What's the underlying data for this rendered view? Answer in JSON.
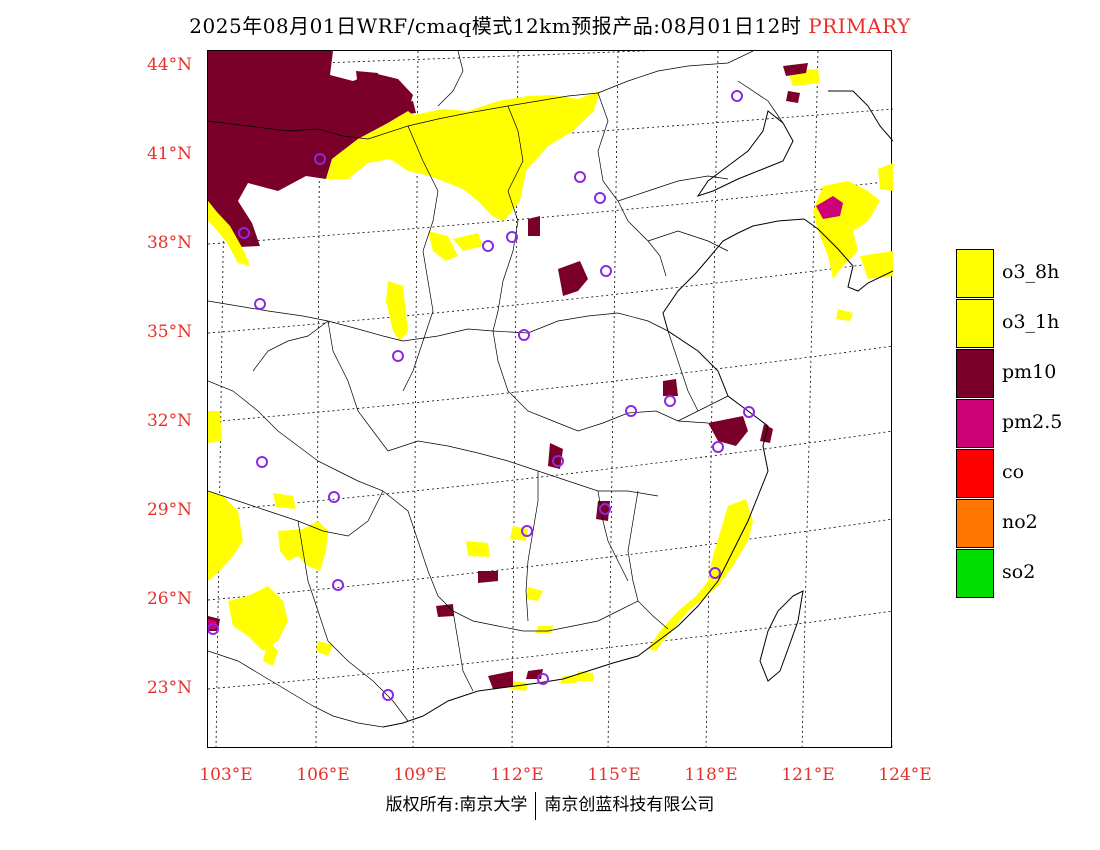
{
  "title": {
    "main": "2025年08月01日WRF/cmaq模式12km预报产品:08月01日12时",
    "tag": "PRIMARY"
  },
  "colors": {
    "o3_8h": "#ffff00",
    "o3_1h": "#ffff00",
    "pm10": "#7a0029",
    "pm25": "#cc0077",
    "co": "#ff0000",
    "no2": "#ff7700",
    "so2": "#00dd00",
    "station": "#8a2be2",
    "axis_label": "#e8302a"
  },
  "lat_labels": [
    "44°N",
    "41°N",
    "38°N",
    "35°N",
    "32°N",
    "29°N",
    "26°N",
    "23°N"
  ],
  "lon_labels": [
    "103°E",
    "106°E",
    "109°E",
    "112°E",
    "115°E",
    "118°E",
    "121°E",
    "124°E"
  ],
  "legend": [
    {
      "label": "o3_8h",
      "color": "#ffff00"
    },
    {
      "label": "o3_1h",
      "color": "#ffff00"
    },
    {
      "label": "pm10",
      "color": "#7a0029"
    },
    {
      "label": "pm2.5",
      "color": "#cc0077"
    },
    {
      "label": "co",
      "color": "#ff0000"
    },
    {
      "label": "no2",
      "color": "#ff7700"
    },
    {
      "label": "so2",
      "color": "#00dd00"
    }
  ],
  "copyright": {
    "left": "版权所有:南京大学",
    "right": "南京创蓝科技有限公司"
  }
}
